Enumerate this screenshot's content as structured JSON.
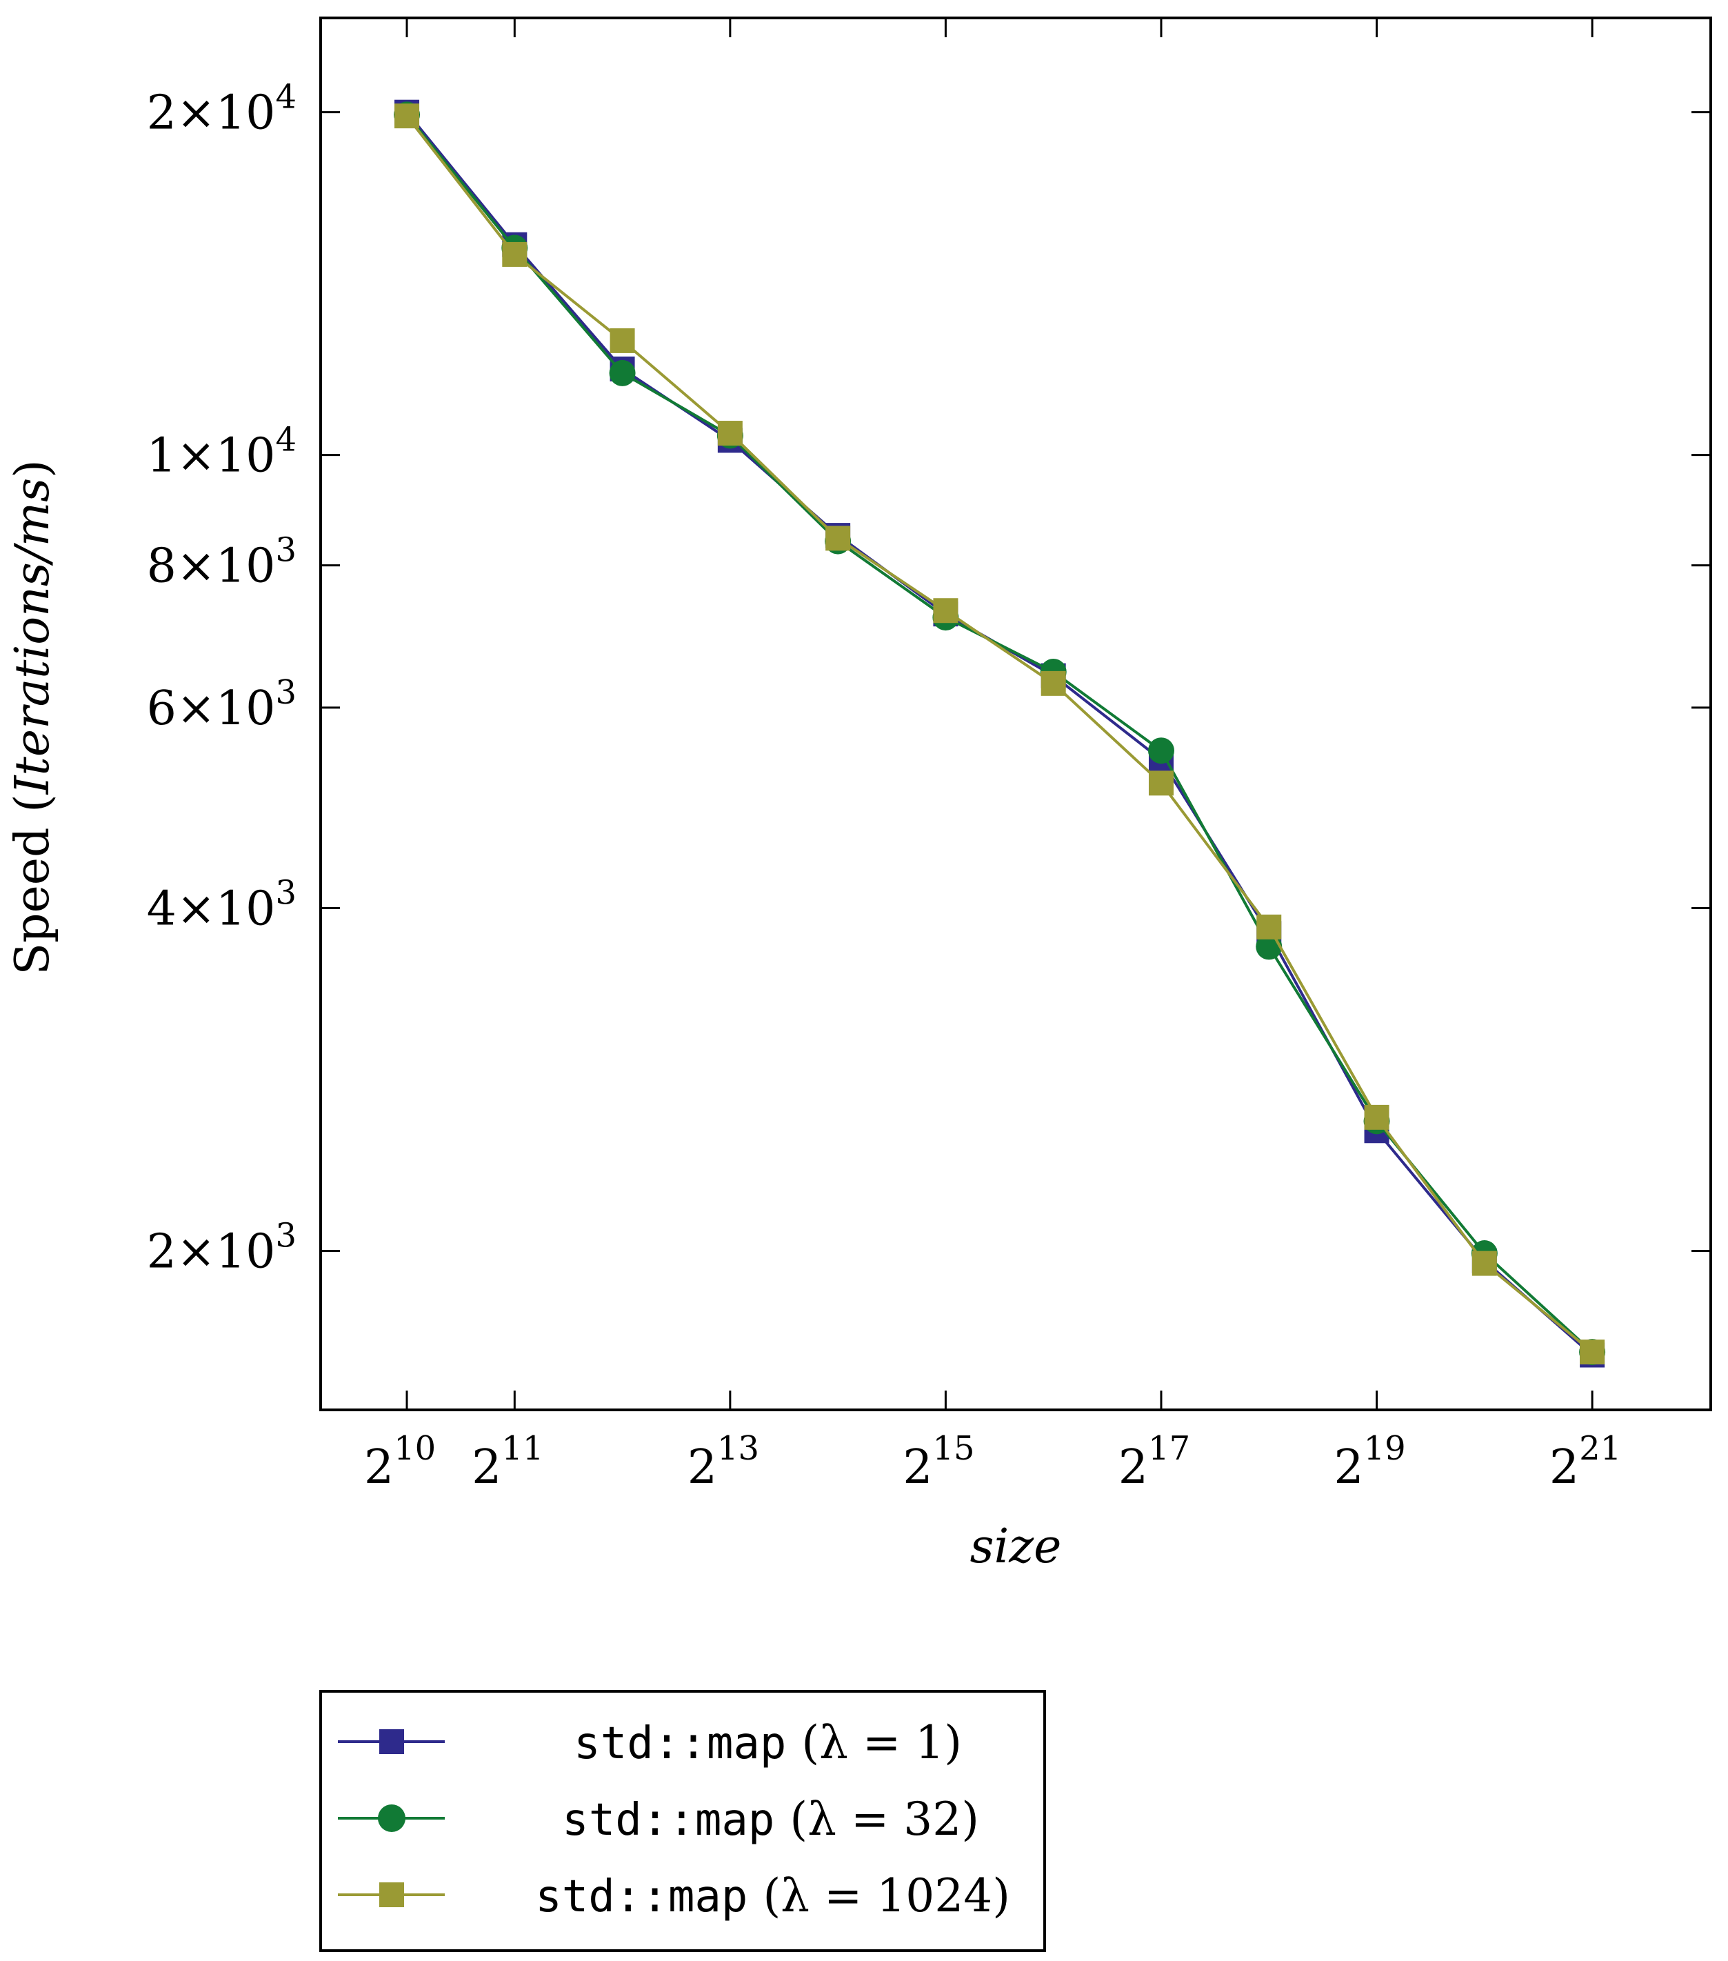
{
  "chart_data": {
    "type": "line",
    "x_scale": "log2",
    "y_scale": "log",
    "xlabel": "size",
    "ylabel_prefix": "Speed (",
    "ylabel_italic": "Iterations/ms",
    "ylabel_suffix": ")",
    "xlim_exp": [
      9.2,
      22.1
    ],
    "ylim": [
      1450,
      24200
    ],
    "x_ticks": [
      {
        "exp": 10,
        "base": "2",
        "sup": "10"
      },
      {
        "exp": 11,
        "base": "2",
        "sup": "11"
      },
      {
        "exp": 13,
        "base": "2",
        "sup": "13"
      },
      {
        "exp": 15,
        "base": "2",
        "sup": "15"
      },
      {
        "exp": 17,
        "base": "2",
        "sup": "17"
      },
      {
        "exp": 19,
        "base": "2",
        "sup": "19"
      },
      {
        "exp": 21,
        "base": "2",
        "sup": "21"
      }
    ],
    "y_ticks": [
      {
        "value": 20000,
        "mant": "2×10",
        "sup": "4"
      },
      {
        "value": 10000,
        "mant": "1×10",
        "sup": "4"
      },
      {
        "value": 8000,
        "mant": "8×10",
        "sup": "3"
      },
      {
        "value": 6000,
        "mant": "6×10",
        "sup": "3"
      },
      {
        "value": 4000,
        "mant": "4×10",
        "sup": "3"
      },
      {
        "value": 2000,
        "mant": "2×10",
        "sup": "3"
      }
    ],
    "x_exponents": [
      10,
      11,
      12,
      13,
      14,
      15,
      16,
      17,
      18,
      19,
      20,
      21
    ],
    "series": [
      {
        "name": "std::map",
        "lambda_text": "(λ = 1)",
        "color": "#2e2a8c",
        "marker": "square",
        "values": [
          20000,
          15300,
          11900,
          10300,
          8500,
          7250,
          6400,
          5400,
          3800,
          2550,
          1960,
          1620
        ]
      },
      {
        "name": "std::map",
        "lambda_text": "(λ = 32)",
        "color": "#117a35",
        "marker": "circle",
        "values": [
          19900,
          15200,
          11800,
          10400,
          8400,
          7200,
          6450,
          5500,
          3700,
          2600,
          1990,
          1630
        ]
      },
      {
        "name": "std::map",
        "lambda_text": "(λ = 1024)",
        "color": "#9a9a34",
        "marker": "square",
        "values": [
          19850,
          15000,
          12600,
          10450,
          8450,
          7300,
          6300,
          5150,
          3850,
          2620,
          1950,
          1630
        ]
      }
    ]
  }
}
